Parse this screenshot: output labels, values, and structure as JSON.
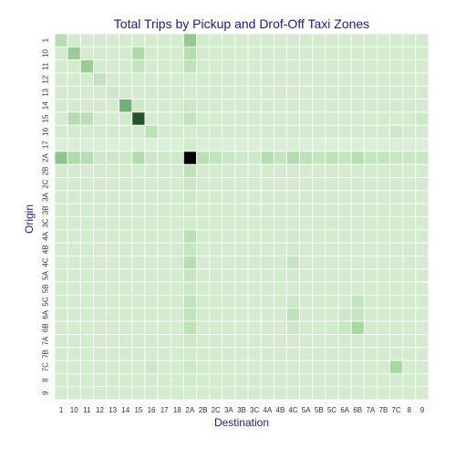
{
  "chart_data": {
    "type": "heatmap",
    "title": "Total Trips by Pickup and Drof-Off Taxi Zones",
    "xlabel": "Destination",
    "ylabel": "Origin",
    "x_categories": [
      "1",
      "10",
      "11",
      "12",
      "13",
      "14",
      "15",
      "16",
      "17",
      "18",
      "2A",
      "2B",
      "2C",
      "3A",
      "3B",
      "3C",
      "4A",
      "4B",
      "4C",
      "5A",
      "5B",
      "5C",
      "6A",
      "6B",
      "7A",
      "7B",
      "7C",
      "8",
      "9"
    ],
    "y_categories": [
      "1",
      "10",
      "11",
      "12",
      "13",
      "14",
      "15",
      "16",
      "17",
      "2A",
      "2B",
      "2C",
      "3A",
      "3B",
      "3C",
      "4A",
      "4B",
      "4C",
      "5A",
      "5B",
      "5C",
      "6A",
      "6B",
      "7A",
      "7B",
      "7C",
      "8",
      "9"
    ],
    "values": [
      [
        0.26,
        0.1,
        0.1,
        0.1,
        0.1,
        0.1,
        0.1,
        0.1,
        0.1,
        0.1,
        0.42,
        0.1,
        0.1,
        0.1,
        0.1,
        0.1,
        0.1,
        0.1,
        0.1,
        0.1,
        0.1,
        0.1,
        0.1,
        0.1,
        0.1,
        0.1,
        0.1,
        0.1,
        0.1
      ],
      [
        0.1,
        0.4,
        0.1,
        0.1,
        0.1,
        0.1,
        0.3,
        0.1,
        0.1,
        0.1,
        0.26,
        0.1,
        0.1,
        0.1,
        0.1,
        0.1,
        0.1,
        0.1,
        0.1,
        0.1,
        0.1,
        0.1,
        0.1,
        0.1,
        0.1,
        0.1,
        0.1,
        0.1,
        0.1
      ],
      [
        0.1,
        0.1,
        0.4,
        0.1,
        0.1,
        0.1,
        0.2,
        0.1,
        0.1,
        0.1,
        0.22,
        0.1,
        0.1,
        0.1,
        0.1,
        0.1,
        0.1,
        0.1,
        0.1,
        0.1,
        0.1,
        0.1,
        0.1,
        0.1,
        0.1,
        0.1,
        0.1,
        0.1,
        0.1
      ],
      [
        0.1,
        0.1,
        0.1,
        0.2,
        0.1,
        0.1,
        0.1,
        0.1,
        0.1,
        0.1,
        0.1,
        0.1,
        0.1,
        0.1,
        0.1,
        0.1,
        0.1,
        0.1,
        0.1,
        0.1,
        0.1,
        0.1,
        0.1,
        0.1,
        0.1,
        0.1,
        0.1,
        0.1,
        0.1
      ],
      [
        0.1,
        0.1,
        0.1,
        0.1,
        0.14,
        0.1,
        0.1,
        0.1,
        0.1,
        0.1,
        0.1,
        0.1,
        0.1,
        0.1,
        0.1,
        0.1,
        0.1,
        0.1,
        0.1,
        0.1,
        0.1,
        0.1,
        0.1,
        0.1,
        0.1,
        0.1,
        0.1,
        0.1,
        0.1
      ],
      [
        0.1,
        0.1,
        0.1,
        0.1,
        0.1,
        0.55,
        0.14,
        0.1,
        0.1,
        0.1,
        0.14,
        0.1,
        0.1,
        0.1,
        0.1,
        0.1,
        0.1,
        0.1,
        0.1,
        0.1,
        0.1,
        0.1,
        0.1,
        0.1,
        0.1,
        0.1,
        0.1,
        0.1,
        0.1
      ],
      [
        0.1,
        0.28,
        0.24,
        0.1,
        0.1,
        0.12,
        0.85,
        0.1,
        0.1,
        0.1,
        0.2,
        0.1,
        0.1,
        0.1,
        0.1,
        0.1,
        0.1,
        0.1,
        0.1,
        0.1,
        0.1,
        0.1,
        0.1,
        0.1,
        0.1,
        0.1,
        0.1,
        0.1,
        0.14
      ],
      [
        0.1,
        0.1,
        0.1,
        0.1,
        0.1,
        0.1,
        0.1,
        0.22,
        0.1,
        0.1,
        0.1,
        0.1,
        0.1,
        0.1,
        0.1,
        0.1,
        0.1,
        0.1,
        0.1,
        0.1,
        0.1,
        0.1,
        0.1,
        0.1,
        0.1,
        0.1,
        0.14,
        0.1,
        0.1
      ],
      [
        0.06,
        0.06,
        0.06,
        0.06,
        0.06,
        0.06,
        0.06,
        0.06,
        0.06,
        0.06,
        0.12,
        0.06,
        0.06,
        0.06,
        0.06,
        0.06,
        0.06,
        0.06,
        0.06,
        0.06,
        0.06,
        0.06,
        0.06,
        0.06,
        0.06,
        0.06,
        0.06,
        0.06,
        0.06
      ],
      [
        0.44,
        0.3,
        0.26,
        0.14,
        0.14,
        0.14,
        0.28,
        0.14,
        0.14,
        0.14,
        1.0,
        0.24,
        0.2,
        0.16,
        0.14,
        0.14,
        0.26,
        0.18,
        0.28,
        0.22,
        0.18,
        0.22,
        0.18,
        0.26,
        0.18,
        0.18,
        0.16,
        0.16,
        0.16
      ],
      [
        0.1,
        0.1,
        0.1,
        0.1,
        0.1,
        0.1,
        0.1,
        0.1,
        0.1,
        0.1,
        0.22,
        0.1,
        0.1,
        0.1,
        0.1,
        0.1,
        0.1,
        0.1,
        0.1,
        0.1,
        0.1,
        0.1,
        0.1,
        0.1,
        0.1,
        0.1,
        0.1,
        0.1,
        0.1
      ],
      [
        0.1,
        0.1,
        0.1,
        0.1,
        0.1,
        0.1,
        0.1,
        0.1,
        0.1,
        0.1,
        0.16,
        0.1,
        0.1,
        0.1,
        0.1,
        0.1,
        0.1,
        0.1,
        0.1,
        0.1,
        0.1,
        0.1,
        0.1,
        0.1,
        0.1,
        0.1,
        0.1,
        0.1,
        0.1
      ],
      [
        0.1,
        0.1,
        0.1,
        0.1,
        0.1,
        0.1,
        0.1,
        0.1,
        0.1,
        0.1,
        0.14,
        0.1,
        0.1,
        0.1,
        0.1,
        0.1,
        0.1,
        0.1,
        0.1,
        0.1,
        0.1,
        0.1,
        0.1,
        0.1,
        0.1,
        0.1,
        0.1,
        0.1,
        0.1
      ],
      [
        0.1,
        0.1,
        0.1,
        0.1,
        0.1,
        0.1,
        0.1,
        0.1,
        0.1,
        0.1,
        0.12,
        0.1,
        0.1,
        0.1,
        0.1,
        0.1,
        0.1,
        0.1,
        0.1,
        0.1,
        0.1,
        0.1,
        0.1,
        0.1,
        0.1,
        0.1,
        0.1,
        0.1,
        0.1
      ],
      [
        0.1,
        0.1,
        0.1,
        0.1,
        0.1,
        0.1,
        0.1,
        0.1,
        0.1,
        0.1,
        0.12,
        0.1,
        0.1,
        0.1,
        0.1,
        0.1,
        0.1,
        0.1,
        0.1,
        0.1,
        0.1,
        0.1,
        0.1,
        0.1,
        0.1,
        0.1,
        0.1,
        0.1,
        0.1
      ],
      [
        0.1,
        0.1,
        0.1,
        0.1,
        0.1,
        0.1,
        0.1,
        0.1,
        0.1,
        0.1,
        0.24,
        0.1,
        0.1,
        0.1,
        0.1,
        0.1,
        0.1,
        0.1,
        0.12,
        0.1,
        0.1,
        0.1,
        0.1,
        0.1,
        0.1,
        0.1,
        0.1,
        0.1,
        0.1
      ],
      [
        0.1,
        0.1,
        0.1,
        0.1,
        0.1,
        0.1,
        0.1,
        0.1,
        0.1,
        0.1,
        0.18,
        0.1,
        0.1,
        0.1,
        0.1,
        0.1,
        0.1,
        0.1,
        0.12,
        0.1,
        0.1,
        0.1,
        0.1,
        0.1,
        0.1,
        0.1,
        0.1,
        0.1,
        0.1
      ],
      [
        0.1,
        0.1,
        0.1,
        0.1,
        0.1,
        0.1,
        0.1,
        0.1,
        0.1,
        0.1,
        0.26,
        0.1,
        0.1,
        0.1,
        0.1,
        0.1,
        0.12,
        0.1,
        0.18,
        0.1,
        0.1,
        0.1,
        0.1,
        0.1,
        0.1,
        0.1,
        0.1,
        0.1,
        0.1
      ],
      [
        0.1,
        0.1,
        0.1,
        0.1,
        0.1,
        0.1,
        0.1,
        0.1,
        0.1,
        0.1,
        0.18,
        0.1,
        0.1,
        0.1,
        0.1,
        0.1,
        0.1,
        0.1,
        0.12,
        0.1,
        0.1,
        0.1,
        0.1,
        0.1,
        0.1,
        0.1,
        0.1,
        0.1,
        0.1
      ],
      [
        0.1,
        0.1,
        0.1,
        0.1,
        0.1,
        0.1,
        0.1,
        0.1,
        0.1,
        0.1,
        0.14,
        0.1,
        0.1,
        0.1,
        0.1,
        0.1,
        0.1,
        0.1,
        0.1,
        0.1,
        0.1,
        0.1,
        0.1,
        0.1,
        0.1,
        0.1,
        0.1,
        0.1,
        0.1
      ],
      [
        0.1,
        0.1,
        0.1,
        0.1,
        0.1,
        0.1,
        0.1,
        0.1,
        0.1,
        0.1,
        0.2,
        0.1,
        0.1,
        0.1,
        0.1,
        0.1,
        0.1,
        0.1,
        0.14,
        0.1,
        0.1,
        0.1,
        0.1,
        0.18,
        0.1,
        0.1,
        0.1,
        0.1,
        0.1
      ],
      [
        0.1,
        0.1,
        0.1,
        0.1,
        0.1,
        0.1,
        0.1,
        0.1,
        0.1,
        0.1,
        0.2,
        0.1,
        0.1,
        0.1,
        0.1,
        0.1,
        0.1,
        0.1,
        0.22,
        0.1,
        0.1,
        0.1,
        0.14,
        0.18,
        0.1,
        0.1,
        0.1,
        0.1,
        0.1
      ],
      [
        0.1,
        0.1,
        0.1,
        0.1,
        0.1,
        0.1,
        0.1,
        0.1,
        0.1,
        0.1,
        0.22,
        0.1,
        0.1,
        0.1,
        0.1,
        0.1,
        0.1,
        0.1,
        0.14,
        0.1,
        0.1,
        0.12,
        0.16,
        0.34,
        0.1,
        0.1,
        0.1,
        0.1,
        0.1
      ],
      [
        0.1,
        0.1,
        0.1,
        0.1,
        0.1,
        0.1,
        0.1,
        0.1,
        0.1,
        0.1,
        0.14,
        0.1,
        0.1,
        0.1,
        0.1,
        0.1,
        0.1,
        0.1,
        0.1,
        0.1,
        0.1,
        0.1,
        0.1,
        0.1,
        0.1,
        0.1,
        0.1,
        0.1,
        0.1
      ],
      [
        0.1,
        0.1,
        0.1,
        0.1,
        0.1,
        0.1,
        0.1,
        0.1,
        0.1,
        0.1,
        0.12,
        0.1,
        0.1,
        0.1,
        0.1,
        0.1,
        0.1,
        0.1,
        0.1,
        0.1,
        0.1,
        0.1,
        0.1,
        0.1,
        0.1,
        0.1,
        0.1,
        0.1,
        0.1
      ],
      [
        0.1,
        0.1,
        0.1,
        0.1,
        0.1,
        0.1,
        0.1,
        0.14,
        0.1,
        0.1,
        0.14,
        0.1,
        0.1,
        0.1,
        0.1,
        0.1,
        0.1,
        0.1,
        0.1,
        0.1,
        0.1,
        0.1,
        0.1,
        0.1,
        0.1,
        0.1,
        0.34,
        0.1,
        0.1
      ],
      [
        0.1,
        0.1,
        0.1,
        0.1,
        0.1,
        0.1,
        0.1,
        0.1,
        0.1,
        0.1,
        0.12,
        0.1,
        0.1,
        0.1,
        0.1,
        0.1,
        0.1,
        0.1,
        0.1,
        0.1,
        0.1,
        0.1,
        0.1,
        0.1,
        0.1,
        0.1,
        0.1,
        0.1,
        0.1
      ],
      [
        0.1,
        0.1,
        0.1,
        0.1,
        0.1,
        0.1,
        0.1,
        0.1,
        0.1,
        0.1,
        0.1,
        0.1,
        0.1,
        0.1,
        0.1,
        0.1,
        0.1,
        0.1,
        0.1,
        0.1,
        0.1,
        0.1,
        0.1,
        0.1,
        0.1,
        0.1,
        0.1,
        0.1,
        0.1
      ]
    ],
    "value_scale": "relative (0 = lightest, 1 = darkest)",
    "colormap": {
      "low": "#e6f4e3",
      "high": "#000000"
    },
    "title_color": "#1b1b8a",
    "axis_label_color": "#1b1b8a",
    "grid": false,
    "legend": "none"
  }
}
